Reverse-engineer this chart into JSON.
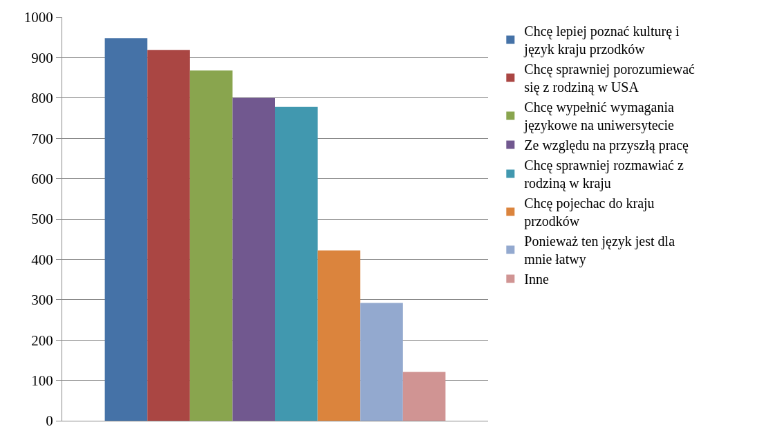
{
  "chart_data": {
    "type": "bar",
    "categories": [
      null
    ],
    "series": [
      {
        "name": "Chcę lepiej poznać kulturę i język kraju przodków",
        "color": "#4572a7",
        "values": [
          948
        ]
      },
      {
        "name": "Chcę sprawniej porozumiewać się z rodziną w USA",
        "color": "#aa4643",
        "values": [
          919
        ]
      },
      {
        "name": "Chcę wypełnić wymagania językowe na uniwersytecie",
        "color": "#89a54e",
        "values": [
          868
        ]
      },
      {
        "name": "Ze względu na przyszłą pracę",
        "color": "#71588f",
        "values": [
          800
        ]
      },
      {
        "name": "Chcę sprawniej rozmawiać z rodziną w kraju",
        "color": "#4198af",
        "values": [
          778
        ]
      },
      {
        "name": "Chcę pojechac do kraju przodków",
        "color": "#db843d",
        "values": [
          422
        ]
      },
      {
        "name": "Ponieważ ten język jest dla mnie łatwy",
        "color": "#93a9cf",
        "values": [
          292
        ]
      },
      {
        "name": "Inne",
        "color": "#d09493",
        "values": [
          121
        ]
      }
    ],
    "ylim": [
      0,
      1000
    ],
    "yticks": [
      0,
      100,
      200,
      300,
      400,
      500,
      600,
      700,
      800,
      900,
      1000
    ],
    "grid": "y",
    "legend": "right"
  }
}
